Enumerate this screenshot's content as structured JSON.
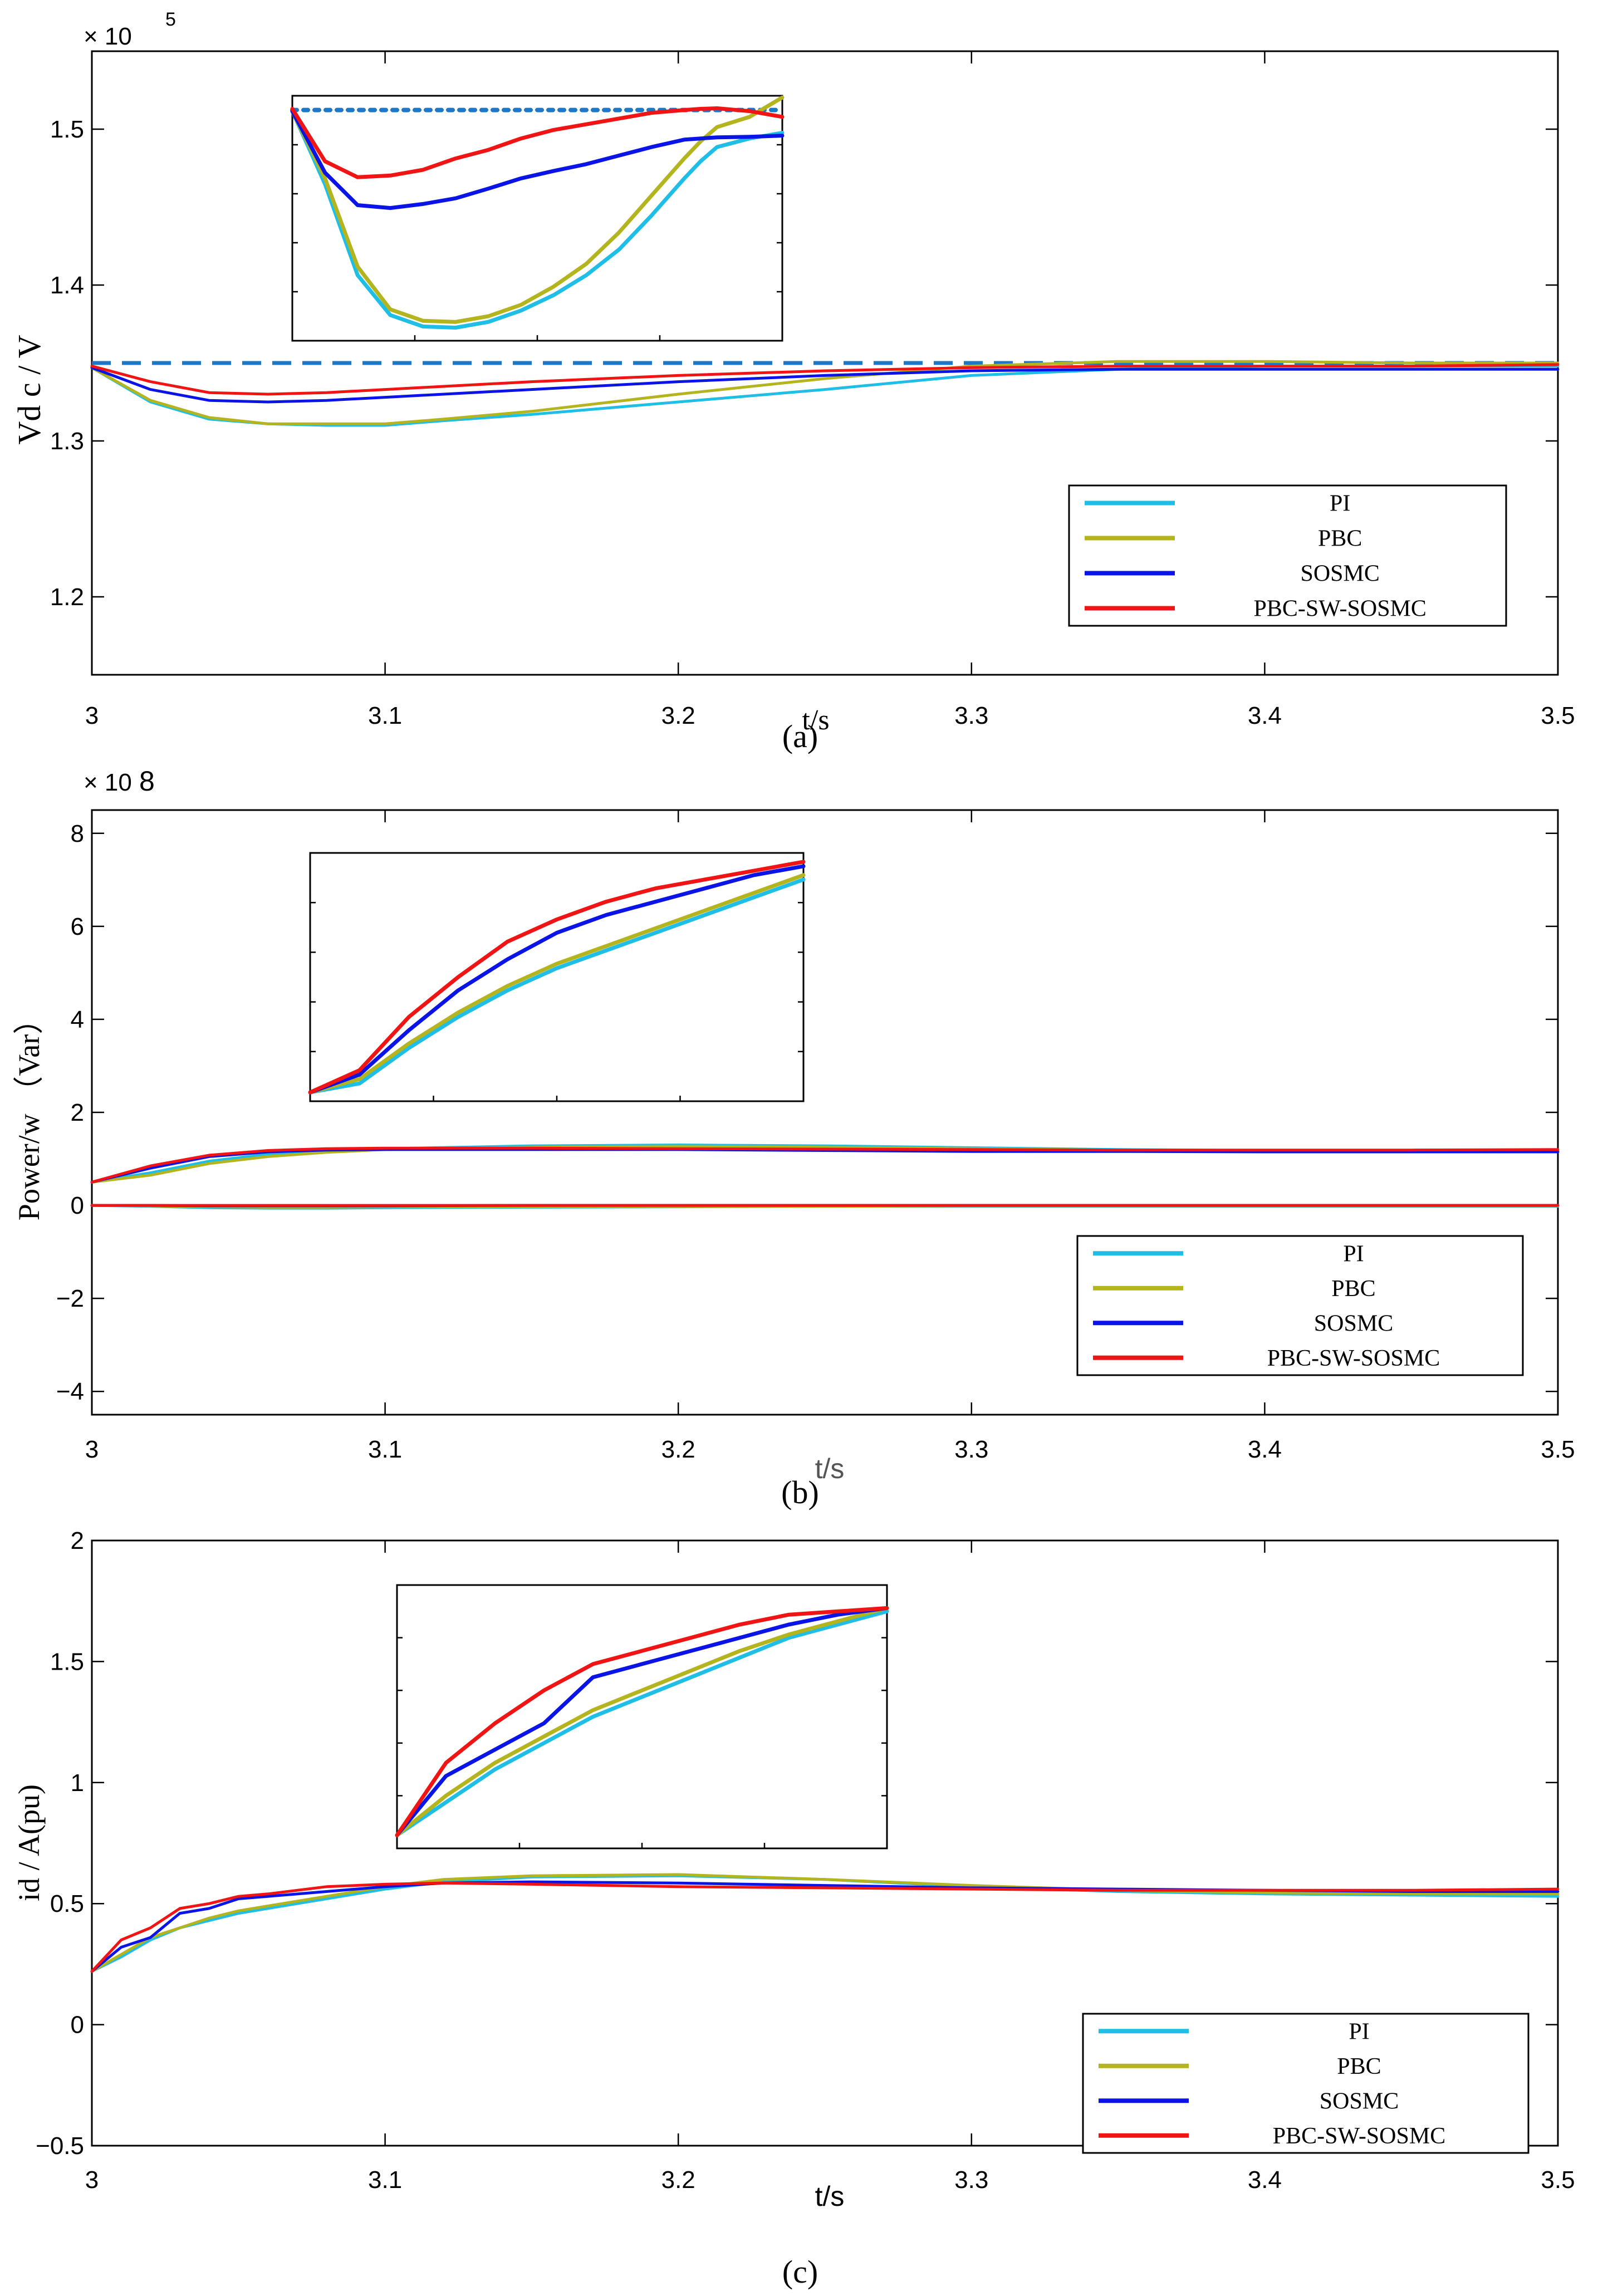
{
  "colors": {
    "PI": "#1ebee6",
    "PBC": "#b4b41e",
    "SOSMC": "#0a14e6",
    "PBC-SW-SOSMC": "#f01414",
    "reference": "#1e78c8"
  },
  "chart_data": [
    {
      "type": "line",
      "id": "a",
      "caption": "(a)",
      "xlabel": "t/s",
      "ylabel": "Vd c / V",
      "exponent_label": "× 10",
      "exponent": "5",
      "xlim": [
        3.0,
        3.5
      ],
      "ylim": [
        1.15,
        1.55
      ],
      "xticks": [
        "3",
        "3.1",
        "3.2",
        "3.3",
        "3.4",
        "3.5"
      ],
      "yticks": [
        "1.2",
        "1.3",
        "1.4",
        "1.5"
      ],
      "ytick_values": [
        1.2,
        1.3,
        1.4,
        1.5
      ],
      "reference": {
        "value": 1.35,
        "style": "dashed"
      },
      "legend": [
        "PI",
        "PBC",
        "SOSMC",
        "PBC-SW-SOSMC"
      ],
      "x": [
        3.0,
        3.02,
        3.04,
        3.06,
        3.08,
        3.1,
        3.12,
        3.15,
        3.2,
        3.25,
        3.3,
        3.35,
        3.4,
        3.45,
        3.5
      ],
      "series": [
        {
          "name": "PI",
          "values": [
            1.347,
            1.325,
            1.314,
            1.311,
            1.31,
            1.31,
            1.313,
            1.317,
            1.325,
            1.333,
            1.342,
            1.346,
            1.348,
            1.348,
            1.348
          ]
        },
        {
          "name": "PBC",
          "values": [
            1.347,
            1.326,
            1.315,
            1.311,
            1.311,
            1.311,
            1.314,
            1.319,
            1.33,
            1.34,
            1.348,
            1.351,
            1.351,
            1.35,
            1.35
          ]
        },
        {
          "name": "SOSMC",
          "values": [
            1.347,
            1.333,
            1.326,
            1.325,
            1.326,
            1.328,
            1.33,
            1.333,
            1.338,
            1.342,
            1.345,
            1.346,
            1.346,
            1.346,
            1.346
          ]
        },
        {
          "name": "PBC-SW-SOSMC",
          "values": [
            1.348,
            1.338,
            1.331,
            1.33,
            1.331,
            1.333,
            1.335,
            1.338,
            1.342,
            1.345,
            1.347,
            1.348,
            1.348,
            1.348,
            1.349
          ]
        }
      ],
      "inset": {
        "ref_value": 1.349,
        "ylim": [
          1.3085,
          1.3515
        ],
        "x": [
          3.0,
          3.02,
          3.04,
          3.06,
          3.08,
          3.1,
          3.12,
          3.14,
          3.16,
          3.18,
          3.2,
          3.22,
          3.24,
          3.25,
          3.26,
          3.28,
          3.3
        ],
        "series": [
          {
            "name": "PI",
            "values": [
              1.3488,
              1.336,
              1.32,
              1.313,
              1.311,
              1.3108,
              1.3118,
              1.3138,
              1.3165,
              1.32,
              1.3245,
              1.3305,
              1.337,
              1.34,
              1.3425,
              1.344,
              1.345
            ]
          },
          {
            "name": "PBC",
            "values": [
              1.3488,
              1.337,
              1.3215,
              1.314,
              1.312,
              1.3118,
              1.3128,
              1.3148,
              1.318,
              1.322,
              1.3275,
              1.334,
              1.3405,
              1.3435,
              1.346,
              1.3478,
              1.3512
            ]
          },
          {
            "name": "SOSMC",
            "values": [
              1.3488,
              1.338,
              1.3323,
              1.3318,
              1.3325,
              1.3335,
              1.3352,
              1.337,
              1.3383,
              1.3395,
              1.341,
              1.3425,
              1.3438,
              1.344,
              1.3442,
              1.3443,
              1.3445
            ]
          },
          {
            "name": "PBC-SW-SOSMC",
            "values": [
              1.3492,
              1.34,
              1.3372,
              1.3375,
              1.3385,
              1.3405,
              1.342,
              1.344,
              1.3455,
              1.3465,
              1.3475,
              1.3485,
              1.349,
              1.3492,
              1.3493,
              1.3488,
              1.3478
            ]
          }
        ]
      }
    },
    {
      "type": "line",
      "id": "b",
      "caption": "(b)",
      "xlabel": "t/s",
      "ylabel": "Power/w （Var）",
      "exponent_label": "× 10",
      "exponent": "8",
      "xlim": [
        3.0,
        3.5
      ],
      "ylim": [
        -4.5,
        8.5
      ],
      "xticks": [
        "3",
        "3.1",
        "3.2",
        "3.3",
        "3.4",
        "3.5"
      ],
      "yticks": [
        "−4",
        "−2",
        "0",
        "2",
        "4",
        "6",
        "8"
      ],
      "ytick_values": [
        -4,
        -2,
        0,
        2,
        4,
        6,
        8
      ],
      "legend": [
        "PI",
        "PBC",
        "SOSMC",
        "PBC-SW-SOSMC"
      ],
      "x": [
        3.0,
        3.02,
        3.04,
        3.06,
        3.08,
        3.1,
        3.15,
        3.2,
        3.25,
        3.3,
        3.35,
        3.4,
        3.45,
        3.5
      ],
      "series": [
        {
          "name": "PI",
          "values": [
            0.5,
            0.7,
            0.95,
            1.1,
            1.18,
            1.22,
            1.28,
            1.3,
            1.28,
            1.24,
            1.2,
            1.18,
            1.18,
            1.18
          ]
        },
        {
          "name": "PBC",
          "values": [
            0.5,
            0.65,
            0.9,
            1.05,
            1.14,
            1.2,
            1.25,
            1.27,
            1.25,
            1.22,
            1.19,
            1.17,
            1.17,
            1.16
          ]
        },
        {
          "name": "SOSMC",
          "values": [
            0.5,
            0.8,
            1.05,
            1.15,
            1.19,
            1.2,
            1.2,
            1.2,
            1.18,
            1.16,
            1.16,
            1.15,
            1.15,
            1.15
          ]
        },
        {
          "name": "PBC-SW-SOSMC",
          "values": [
            0.5,
            0.85,
            1.08,
            1.18,
            1.22,
            1.23,
            1.23,
            1.22,
            1.21,
            1.2,
            1.19,
            1.19,
            1.19,
            1.2
          ]
        }
      ],
      "zero_series": [
        {
          "name": "PI",
          "values": [
            0.0,
            -0.02,
            -0.05,
            -0.06,
            -0.06,
            -0.05,
            -0.04,
            -0.03,
            -0.02,
            -0.02,
            -0.02,
            -0.02,
            -0.02,
            -0.02
          ]
        },
        {
          "name": "PBC",
          "values": [
            0.0,
            -0.01,
            -0.03,
            -0.04,
            -0.04,
            -0.03,
            -0.03,
            -0.02,
            -0.02,
            -0.01,
            -0.01,
            -0.01,
            -0.01,
            -0.01
          ]
        },
        {
          "name": "SOSMC",
          "values": [
            0.0,
            0.0,
            -0.01,
            -0.01,
            -0.01,
            -0.01,
            0.0,
            0.0,
            0.0,
            0.0,
            0.0,
            0.0,
            0.0,
            0.0
          ]
        },
        {
          "name": "PBC-SW-SOSMC",
          "values": [
            0.0,
            0.0,
            0.0,
            0.0,
            0.0,
            0.0,
            0.0,
            0.0,
            0.0,
            0.0,
            0.0,
            0.0,
            0.0,
            0.0
          ]
        }
      ],
      "inset": {
        "ylim": [
          0.48,
          1.04
        ],
        "x": [
          3.0,
          3.01,
          3.02,
          3.03,
          3.04,
          3.05,
          3.06,
          3.07,
          3.08,
          3.09,
          3.1
        ],
        "series": [
          {
            "name": "PI",
            "values": [
              0.5,
              0.52,
              0.6,
              0.67,
              0.73,
              0.78,
              0.82,
              0.86,
              0.9,
              0.94,
              0.98
            ]
          },
          {
            "name": "PBC",
            "values": [
              0.5,
              0.53,
              0.61,
              0.68,
              0.74,
              0.79,
              0.83,
              0.87,
              0.91,
              0.95,
              0.99
            ]
          },
          {
            "name": "SOSMC",
            "values": [
              0.5,
              0.54,
              0.64,
              0.73,
              0.8,
              0.86,
              0.9,
              0.93,
              0.96,
              0.99,
              1.01
            ]
          },
          {
            "name": "PBC-SW-SOSMC",
            "values": [
              0.5,
              0.55,
              0.67,
              0.76,
              0.84,
              0.89,
              0.93,
              0.96,
              0.98,
              1.0,
              1.02
            ]
          }
        ]
      }
    },
    {
      "type": "line",
      "id": "c",
      "caption": "(c)",
      "xlabel": "t/s",
      "ylabel": "id / A(pu)",
      "xlim": [
        3.0,
        3.5
      ],
      "ylim": [
        -0.5,
        2.0
      ],
      "xticks": [
        "3",
        "3.1",
        "3.2",
        "3.3",
        "3.4",
        "3.5"
      ],
      "yticks": [
        "−0.5",
        "0",
        "0.5",
        "1",
        "1.5",
        "2"
      ],
      "ytick_values": [
        -0.5,
        0,
        0.5,
        1,
        1.5,
        2
      ],
      "legend": [
        "PI",
        "PBC",
        "SOSMC",
        "PBC-SW-SOSMC"
      ],
      "x": [
        3.0,
        3.01,
        3.02,
        3.03,
        3.04,
        3.05,
        3.06,
        3.08,
        3.1,
        3.12,
        3.15,
        3.2,
        3.25,
        3.3,
        3.35,
        3.4,
        3.45,
        3.5
      ],
      "series": [
        {
          "name": "PI",
          "values": [
            0.22,
            0.28,
            0.35,
            0.4,
            0.43,
            0.46,
            0.48,
            0.52,
            0.56,
            0.59,
            0.61,
            0.615,
            0.6,
            0.57,
            0.55,
            0.54,
            0.535,
            0.53
          ]
        },
        {
          "name": "PBC",
          "values": [
            0.22,
            0.29,
            0.36,
            0.4,
            0.44,
            0.47,
            0.49,
            0.53,
            0.57,
            0.6,
            0.615,
            0.62,
            0.6,
            0.575,
            0.555,
            0.545,
            0.54,
            0.54
          ]
        },
        {
          "name": "SOSMC",
          "values": [
            0.22,
            0.32,
            0.36,
            0.46,
            0.48,
            0.52,
            0.53,
            0.55,
            0.57,
            0.585,
            0.59,
            0.585,
            0.575,
            0.565,
            0.56,
            0.555,
            0.55,
            0.55
          ]
        },
        {
          "name": "PBC-SW-SOSMC",
          "values": [
            0.22,
            0.35,
            0.4,
            0.48,
            0.5,
            0.53,
            0.54,
            0.57,
            0.58,
            0.585,
            0.58,
            0.57,
            0.565,
            0.56,
            0.555,
            0.555,
            0.555,
            0.56
          ]
        }
      ],
      "inset": {
        "ylim": [
          0.2,
          0.6
        ],
        "x": [
          3.0,
          3.01,
          3.02,
          3.03,
          3.04,
          3.05,
          3.06,
          3.07,
          3.08,
          3.09,
          3.1
        ],
        "series": [
          {
            "name": "PI",
            "values": [
              0.22,
              0.27,
              0.32,
              0.36,
              0.4,
              0.43,
              0.46,
              0.49,
              0.52,
              0.54,
              0.56
            ]
          },
          {
            "name": "PBC",
            "values": [
              0.22,
              0.28,
              0.33,
              0.37,
              0.41,
              0.44,
              0.47,
              0.5,
              0.525,
              0.545,
              0.565
            ]
          },
          {
            "name": "SOSMC",
            "values": [
              0.22,
              0.31,
              0.35,
              0.39,
              0.46,
              0.48,
              0.5,
              0.52,
              0.54,
              0.555,
              0.565
            ]
          },
          {
            "name": "PBC-SW-SOSMC",
            "values": [
              0.22,
              0.33,
              0.39,
              0.44,
              0.48,
              0.5,
              0.52,
              0.54,
              0.555,
              0.56,
              0.565
            ]
          }
        ]
      }
    }
  ]
}
